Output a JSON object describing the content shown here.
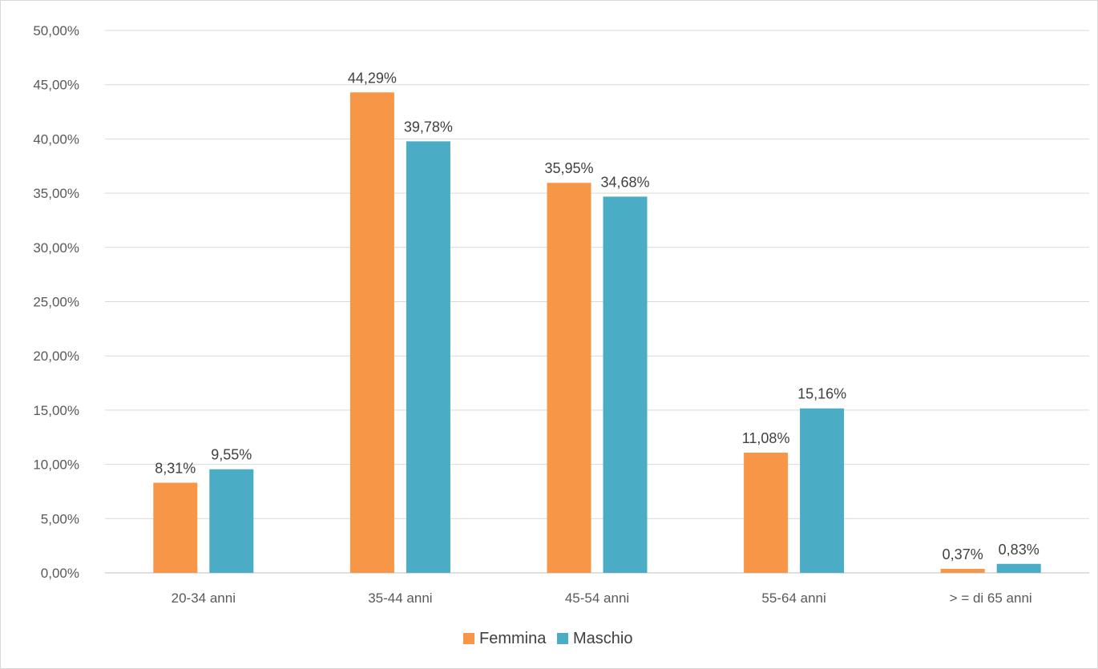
{
  "chart_data": {
    "type": "bar",
    "categories": [
      "20-34 anni",
      "35-44 anni",
      "45-54 anni",
      "55-64 anni",
      "> = di 65 anni"
    ],
    "series": [
      {
        "name": "Femmina",
        "color": "#f79646",
        "values": [
          8.31,
          44.29,
          35.95,
          11.08,
          0.37
        ],
        "labels": [
          "8,31%",
          "44,29%",
          "35,95%",
          "11,08%",
          "0,37%"
        ]
      },
      {
        "name": "Maschio",
        "color": "#4bacc6",
        "values": [
          9.55,
          39.78,
          34.68,
          15.16,
          0.83
        ],
        "labels": [
          "9,55%",
          "39,78%",
          "34,68%",
          "15,16%",
          "0,83%"
        ]
      }
    ],
    "ylim": [
      0,
      50
    ],
    "yticks": [
      0,
      5,
      10,
      15,
      20,
      25,
      30,
      35,
      40,
      45,
      50
    ],
    "ytick_labels": [
      "0,00%",
      "5,00%",
      "10,00%",
      "15,00%",
      "20,00%",
      "25,00%",
      "30,00%",
      "35,00%",
      "40,00%",
      "45,00%",
      "50,00%"
    ],
    "grid": true,
    "legend_position": "bottom-center",
    "colors": {
      "gridline": "#d9d9d9",
      "axis": "#bfbfbf"
    }
  }
}
